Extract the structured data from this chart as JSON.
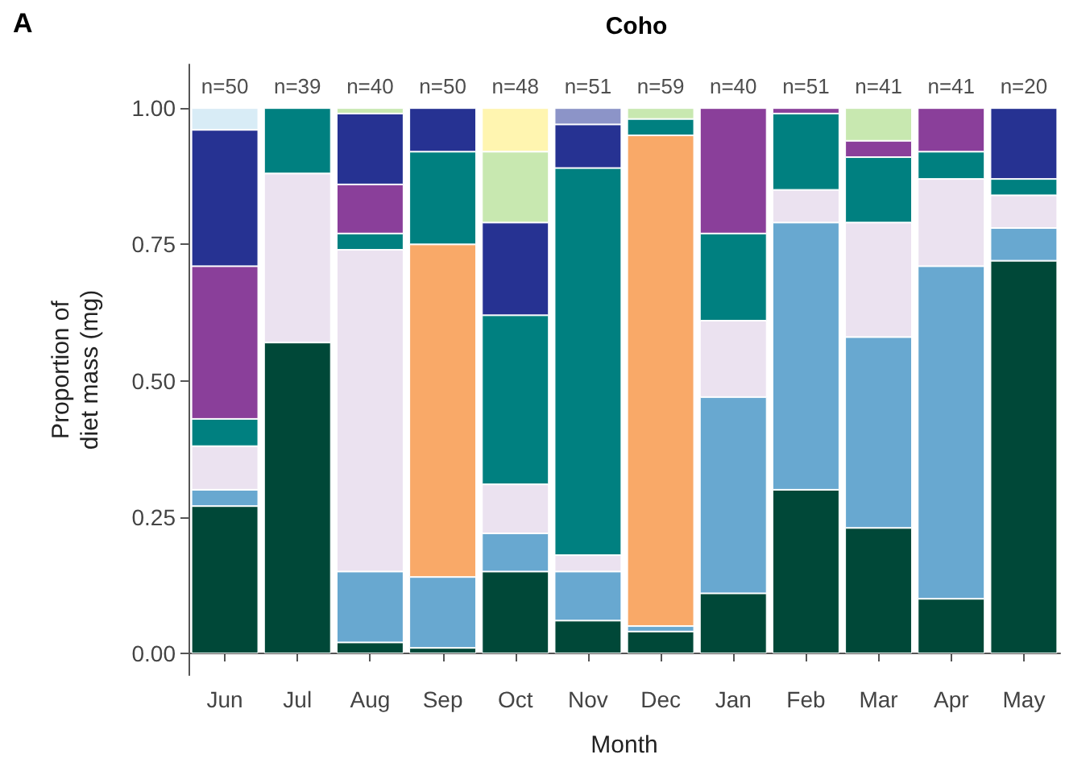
{
  "chart_data": {
    "type": "bar",
    "stacked": true,
    "title": "Coho",
    "xlabel": "Month",
    "ylabel": "Proportion of\ndiet mass (mg)",
    "categories": [
      "Jun",
      "Jul",
      "Aug",
      "Sep",
      "Oct",
      "Nov",
      "Dec",
      "Jan",
      "Feb",
      "Mar",
      "Apr",
      "May"
    ],
    "series": [
      {
        "color": "#004838",
        "values": [
          0.27,
          0.57,
          0.02,
          0.01,
          0.15,
          0.06,
          0.04,
          0.11,
          0.3,
          0.23,
          0.1,
          0.72
        ]
      },
      {
        "color": "#68a8d0",
        "values": [
          0.03,
          null,
          0.13,
          0.13,
          0.07,
          0.09,
          0.01,
          0.36,
          0.49,
          0.35,
          0.61,
          0.06
        ]
      },
      {
        "color": "#f9a968",
        "values": [
          null,
          null,
          null,
          0.61,
          null,
          null,
          0.9,
          null,
          null,
          null,
          null,
          null
        ]
      },
      {
        "color": "#ebe2f0",
        "values": [
          0.08,
          0.31,
          0.59,
          null,
          0.09,
          0.03,
          null,
          0.14,
          0.06,
          0.21,
          0.16,
          0.06
        ]
      },
      {
        "color": "#008080",
        "values": [
          0.05,
          0.12,
          0.03,
          0.17,
          0.31,
          0.71,
          0.03,
          0.16,
          0.14,
          0.12,
          0.05,
          0.03
        ]
      },
      {
        "color": "#8a3f9a",
        "values": [
          0.28,
          null,
          0.09,
          null,
          null,
          null,
          null,
          0.23,
          0.01,
          0.03,
          0.08,
          null
        ]
      },
      {
        "color": "#263292",
        "values": [
          0.25,
          null,
          0.13,
          0.08,
          0.17,
          0.08,
          null,
          null,
          null,
          null,
          null,
          0.13
        ]
      },
      {
        "color": "#c8e8b0",
        "values": [
          null,
          null,
          0.01,
          null,
          0.13,
          null,
          0.02,
          null,
          null,
          0.06,
          null,
          null
        ]
      },
      {
        "color": "#fff5b0",
        "values": [
          null,
          null,
          null,
          null,
          0.08,
          null,
          null,
          null,
          null,
          null,
          null,
          null
        ]
      },
      {
        "color": "#d8ecf6",
        "values": [
          0.04,
          null,
          null,
          null,
          null,
          null,
          null,
          null,
          null,
          null,
          null,
          null
        ]
      },
      {
        "color": "#8c94c8",
        "values": [
          null,
          null,
          null,
          null,
          null,
          0.03,
          null,
          null,
          null,
          null,
          null,
          null
        ]
      }
    ],
    "ylim": [
      -0.04,
      1.08
    ],
    "yticks": [
      {
        "value": 0,
        "label": "0.00"
      },
      {
        "value": 0.25,
        "label": "0.25"
      },
      {
        "value": 0.5,
        "label": "0.50"
      },
      {
        "value": 0.75,
        "label": "0.75"
      },
      {
        "value": 1,
        "label": "1.00"
      }
    ],
    "grid": false,
    "annotations": [
      "A",
      "n=50",
      "n=39",
      "n=40",
      "n=50",
      "n=48",
      "n=51",
      "n=59",
      "n=40",
      "n=51",
      "n=41",
      "n=41",
      "n=20"
    ]
  }
}
